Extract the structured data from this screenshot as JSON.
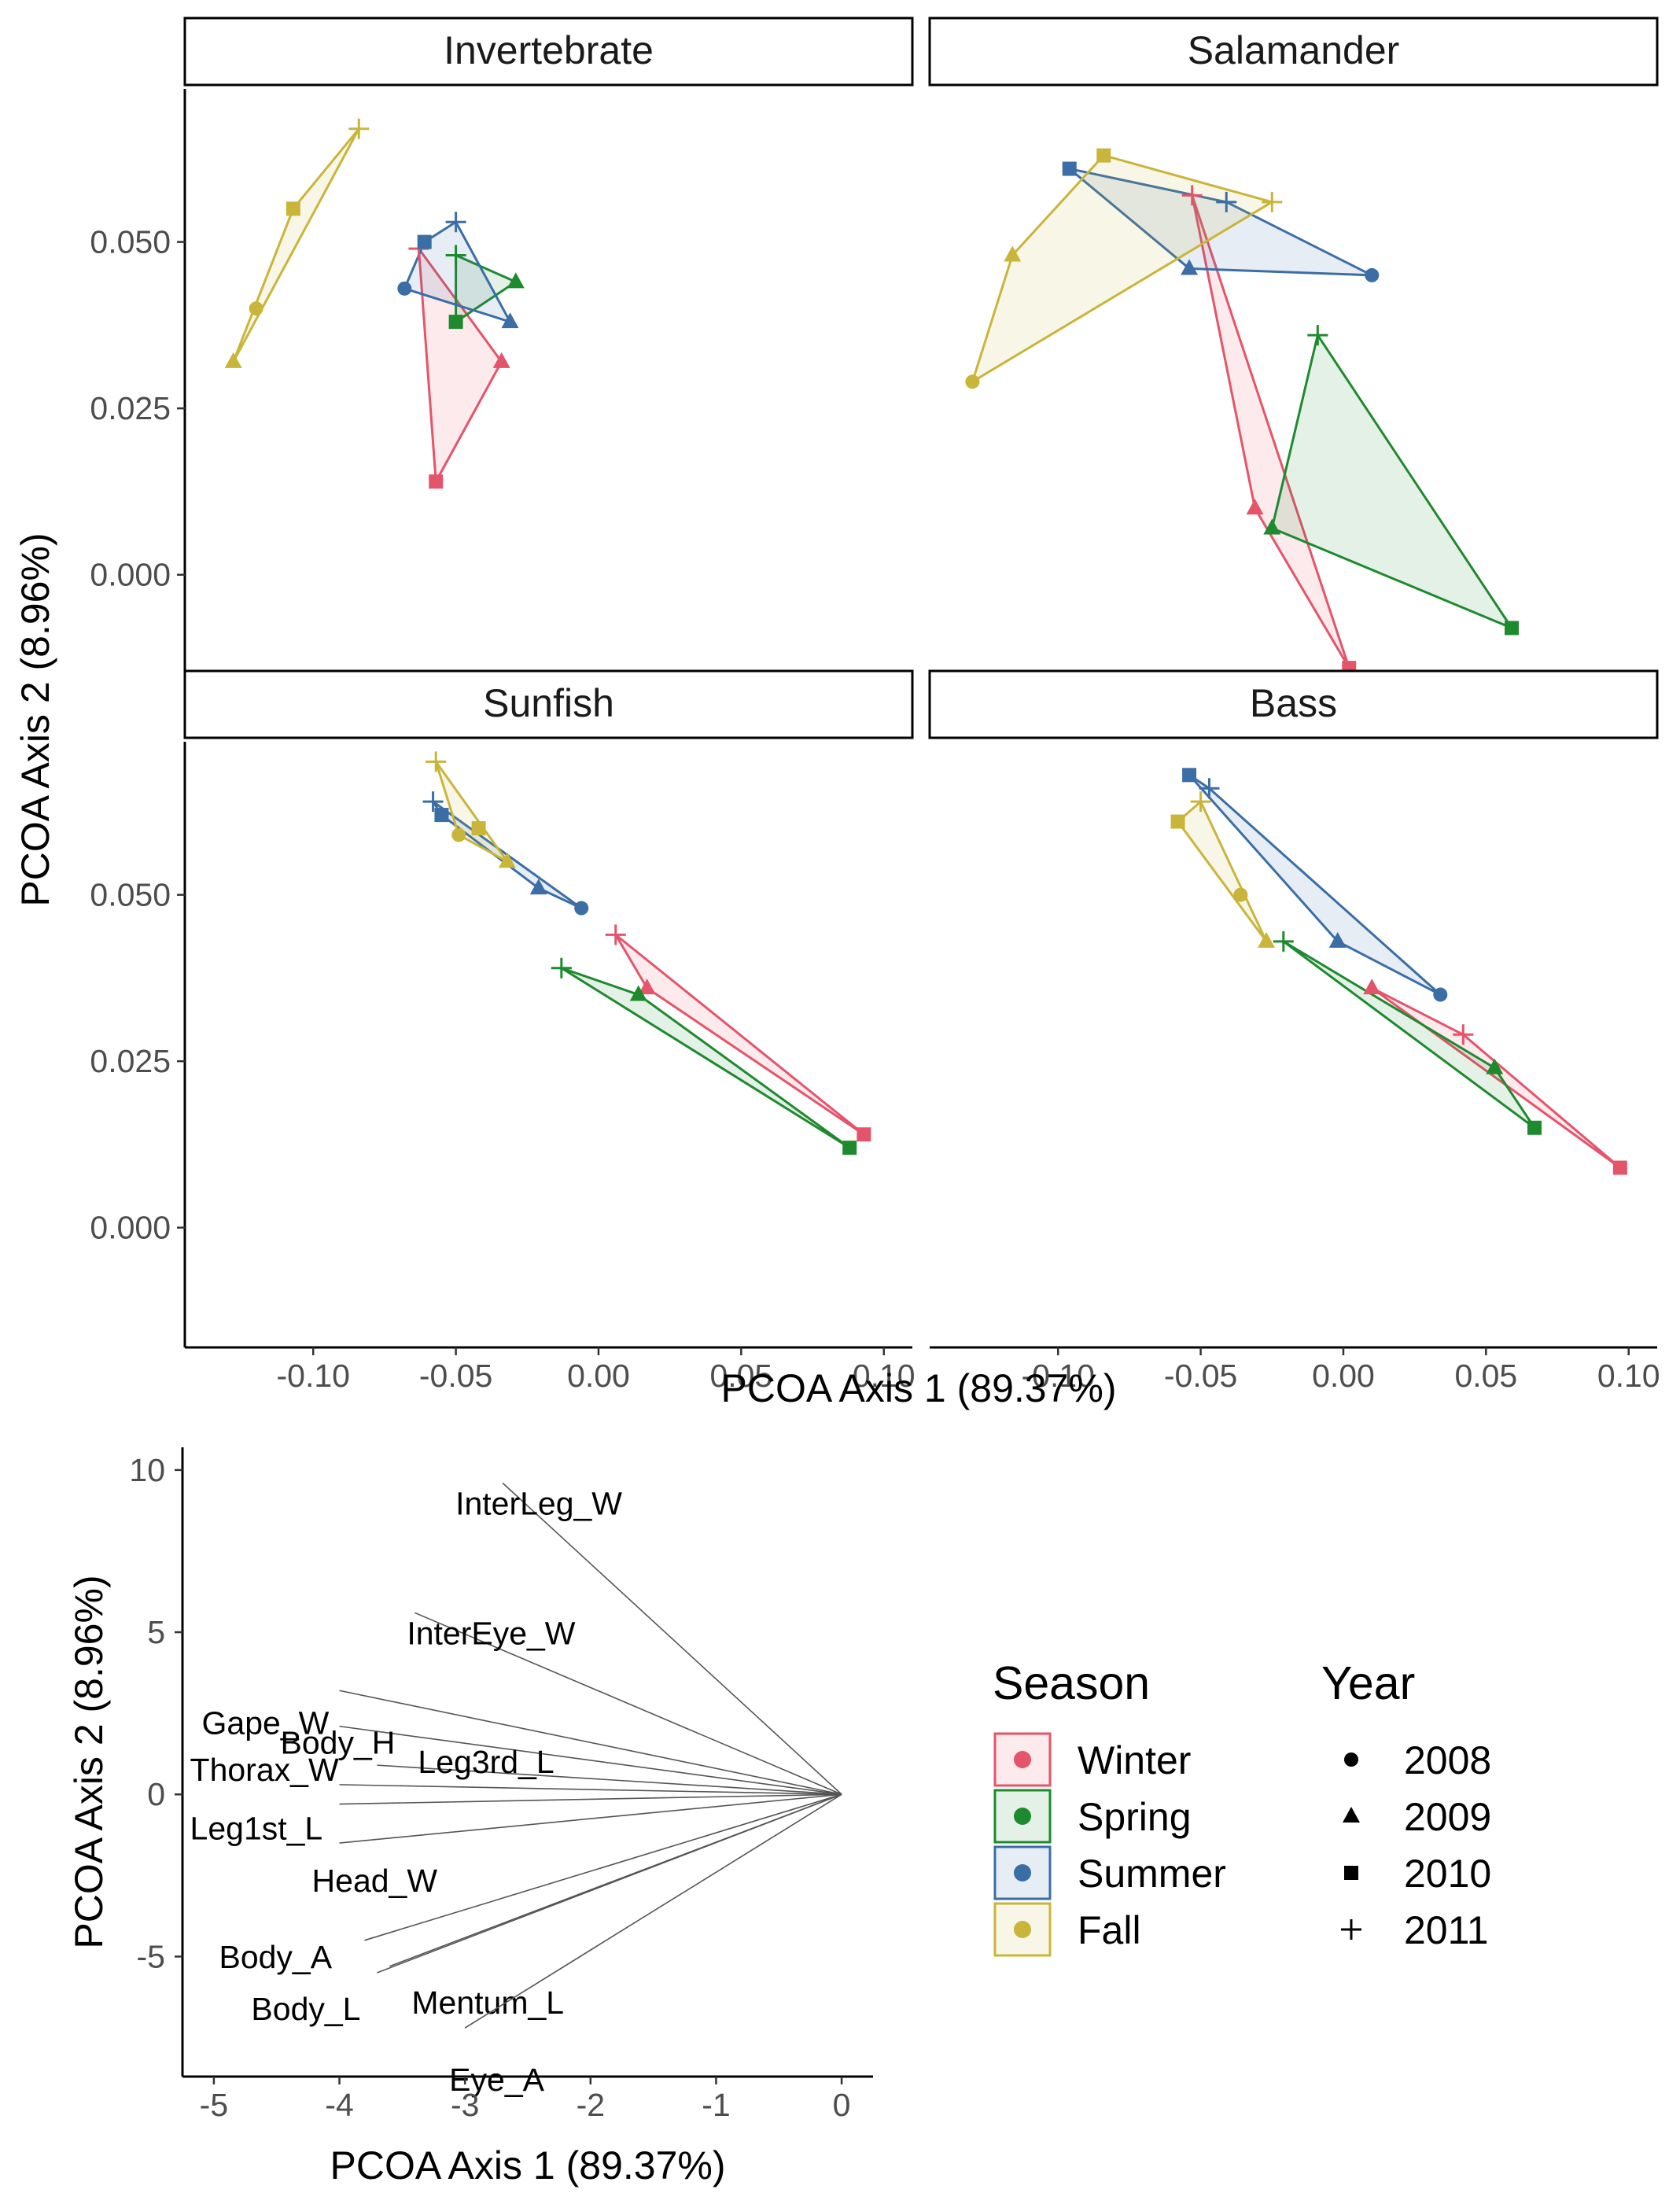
{
  "colors": {
    "Winter": "#E4546A",
    "Spring": "#1E8A2E",
    "Summer": "#3A6EA5",
    "Fall": "#C9B53A"
  },
  "chart_data": [
    {
      "type": "scatter",
      "subtype": "faceted convex hulls",
      "xlabel": "PCOA Axis 1 (89.37%)",
      "ylabel": "PCOA Axis 2 (8.96%)",
      "xlim": [
        -0.145,
        0.11
      ],
      "ylim": [
        -0.018,
        0.073
      ],
      "x_ticks": [
        "-0.10",
        "-0.05",
        "0.00",
        "0.05",
        "0.10"
      ],
      "y_ticks": [
        "0.000",
        "0.025",
        "0.050"
      ],
      "x_tick_values": [
        -0.1,
        -0.05,
        0.0,
        0.05,
        0.1
      ],
      "y_tick_values": [
        0.0,
        0.025,
        0.05
      ],
      "panels": [
        {
          "name": "Invertebrate",
          "points": [
            {
              "season": "Winter",
              "year": "2010",
              "x": -0.057,
              "y": 0.014
            },
            {
              "season": "Winter",
              "year": "2009",
              "x": -0.034,
              "y": 0.032
            },
            {
              "season": "Winter",
              "year": "2011",
              "x": -0.063,
              "y": 0.049
            },
            {
              "season": "Spring",
              "year": "2011",
              "x": -0.05,
              "y": 0.048
            },
            {
              "season": "Spring",
              "year": "2009",
              "x": -0.029,
              "y": 0.044
            },
            {
              "season": "Spring",
              "year": "2010",
              "x": -0.05,
              "y": 0.038
            },
            {
              "season": "Summer",
              "year": "2008",
              "x": -0.068,
              "y": 0.043
            },
            {
              "season": "Summer",
              "year": "2010",
              "x": -0.061,
              "y": 0.05
            },
            {
              "season": "Summer",
              "year": "2011",
              "x": -0.05,
              "y": 0.053
            },
            {
              "season": "Summer",
              "year": "2009",
              "x": -0.031,
              "y": 0.038
            },
            {
              "season": "Fall",
              "year": "2009",
              "x": -0.128,
              "y": 0.032
            },
            {
              "season": "Fall",
              "year": "2008",
              "x": -0.12,
              "y": 0.04
            },
            {
              "season": "Fall",
              "year": "2010",
              "x": -0.107,
              "y": 0.055
            },
            {
              "season": "Fall",
              "year": "2011",
              "x": -0.084,
              "y": 0.067
            }
          ]
        },
        {
          "name": "Salamander",
          "points": [
            {
              "season": "Winter",
              "year": "2011",
              "x": -0.053,
              "y": 0.057
            },
            {
              "season": "Winter",
              "year": "2009",
              "x": -0.031,
              "y": 0.01
            },
            {
              "season": "Winter",
              "year": "2010",
              "x": 0.002,
              "y": -0.014
            },
            {
              "season": "Spring",
              "year": "2011",
              "x": -0.009,
              "y": 0.036
            },
            {
              "season": "Spring",
              "year": "2009",
              "x": -0.025,
              "y": 0.007
            },
            {
              "season": "Spring",
              "year": "2010",
              "x": 0.059,
              "y": -0.008
            },
            {
              "season": "Summer",
              "year": "2010",
              "x": -0.096,
              "y": 0.061
            },
            {
              "season": "Summer",
              "year": "2011",
              "x": -0.041,
              "y": 0.056
            },
            {
              "season": "Summer",
              "year": "2008",
              "x": 0.01,
              "y": 0.045
            },
            {
              "season": "Summer",
              "year": "2009",
              "x": -0.054,
              "y": 0.046
            },
            {
              "season": "Fall",
              "year": "2010",
              "x": -0.084,
              "y": 0.063
            },
            {
              "season": "Fall",
              "year": "2011",
              "x": -0.025,
              "y": 0.056
            },
            {
              "season": "Fall",
              "year": "2009",
              "x": -0.116,
              "y": 0.048
            },
            {
              "season": "Fall",
              "year": "2008",
              "x": -0.13,
              "y": 0.029
            }
          ]
        },
        {
          "name": "Sunfish",
          "points": [
            {
              "season": "Winter",
              "year": "2011",
              "x": 0.006,
              "y": 0.044
            },
            {
              "season": "Winter",
              "year": "2009",
              "x": 0.017,
              "y": 0.036
            },
            {
              "season": "Winter",
              "year": "2010",
              "x": 0.093,
              "y": 0.014
            },
            {
              "season": "Spring",
              "year": "2011",
              "x": -0.013,
              "y": 0.039
            },
            {
              "season": "Spring",
              "year": "2009",
              "x": 0.014,
              "y": 0.035
            },
            {
              "season": "Spring",
              "year": "2010",
              "x": 0.088,
              "y": 0.012
            },
            {
              "season": "Summer",
              "year": "2011",
              "x": -0.058,
              "y": 0.064
            },
            {
              "season": "Summer",
              "year": "2010",
              "x": -0.055,
              "y": 0.062
            },
            {
              "season": "Summer",
              "year": "2009",
              "x": -0.021,
              "y": 0.051
            },
            {
              "season": "Summer",
              "year": "2008",
              "x": -0.006,
              "y": 0.048
            },
            {
              "season": "Fall",
              "year": "2011",
              "x": -0.057,
              "y": 0.07
            },
            {
              "season": "Fall",
              "year": "2010",
              "x": -0.042,
              "y": 0.06
            },
            {
              "season": "Fall",
              "year": "2009",
              "x": -0.032,
              "y": 0.055
            },
            {
              "season": "Fall",
              "year": "2008",
              "x": -0.049,
              "y": 0.059
            }
          ]
        },
        {
          "name": "Bass",
          "points": [
            {
              "season": "Winter",
              "year": "2009",
              "x": 0.01,
              "y": 0.036
            },
            {
              "season": "Winter",
              "year": "2011",
              "x": 0.042,
              "y": 0.029
            },
            {
              "season": "Winter",
              "year": "2010",
              "x": 0.097,
              "y": 0.009
            },
            {
              "season": "Spring",
              "year": "2011",
              "x": -0.021,
              "y": 0.043
            },
            {
              "season": "Spring",
              "year": "2009",
              "x": 0.053,
              "y": 0.024
            },
            {
              "season": "Spring",
              "year": "2010",
              "x": 0.067,
              "y": 0.015
            },
            {
              "season": "Summer",
              "year": "2010",
              "x": -0.054,
              "y": 0.068
            },
            {
              "season": "Summer",
              "year": "2011",
              "x": -0.047,
              "y": 0.066
            },
            {
              "season": "Summer",
              "year": "2009",
              "x": -0.002,
              "y": 0.043
            },
            {
              "season": "Summer",
              "year": "2008",
              "x": 0.034,
              "y": 0.035
            },
            {
              "season": "Fall",
              "year": "2010",
              "x": -0.058,
              "y": 0.061
            },
            {
              "season": "Fall",
              "year": "2011",
              "x": -0.05,
              "y": 0.064
            },
            {
              "season": "Fall",
              "year": "2008",
              "x": -0.036,
              "y": 0.05
            },
            {
              "season": "Fall",
              "year": "2009",
              "x": -0.027,
              "y": 0.043
            }
          ]
        }
      ]
    },
    {
      "type": "biplot",
      "xlabel": "PCOA Axis 1 (89.37%)",
      "ylabel": "PCOA Axis 2 (8.96%)",
      "xlim": [
        -5.25,
        0.25
      ],
      "ylim": [
        -8.7,
        10.7
      ],
      "x_ticks": [
        "-5",
        "-4",
        "-3",
        "-2",
        "-1",
        "0"
      ],
      "y_ticks": [
        "-5",
        "0",
        "5",
        "10"
      ],
      "x_tick_values": [
        -5,
        -4,
        -3,
        -2,
        -1,
        0
      ],
      "y_tick_values": [
        -5,
        0,
        5,
        10
      ],
      "vectors": [
        {
          "label": "InterLeg_W",
          "x": -2.7,
          "y": 9.6
        },
        {
          "label": "InterEye_W",
          "x": -3.4,
          "y": 5.6
        },
        {
          "label": "Gape_W",
          "x": -4.0,
          "y": 3.2
        },
        {
          "label": "Body_H",
          "x": -4.0,
          "y": 2.1
        },
        {
          "label": "Thorax_W",
          "x": -4.0,
          "y": 0.3
        },
        {
          "label": "Leg3rd_L",
          "x": -3.7,
          "y": 0.9
        },
        {
          "label": "Leg1st_L",
          "x": -4.0,
          "y": -0.3
        },
        {
          "label": "Head_W",
          "x": -4.0,
          "y": -1.5
        },
        {
          "label": "Body_A",
          "x": -3.8,
          "y": -4.5
        },
        {
          "label": "Body_L",
          "x": -3.7,
          "y": -5.5
        },
        {
          "label": "Mentum_L",
          "x": -3.6,
          "y": -5.3
        },
        {
          "label": "Eye_A",
          "x": -3.0,
          "y": -7.2
        }
      ]
    }
  ],
  "legend": {
    "season_title": "Season",
    "year_title": "Year",
    "seasons": [
      "Winter",
      "Spring",
      "Summer",
      "Fall"
    ],
    "years": [
      "2008",
      "2009",
      "2010",
      "2011"
    ],
    "year_shapes": [
      "circle",
      "triangle",
      "square",
      "plus"
    ]
  }
}
